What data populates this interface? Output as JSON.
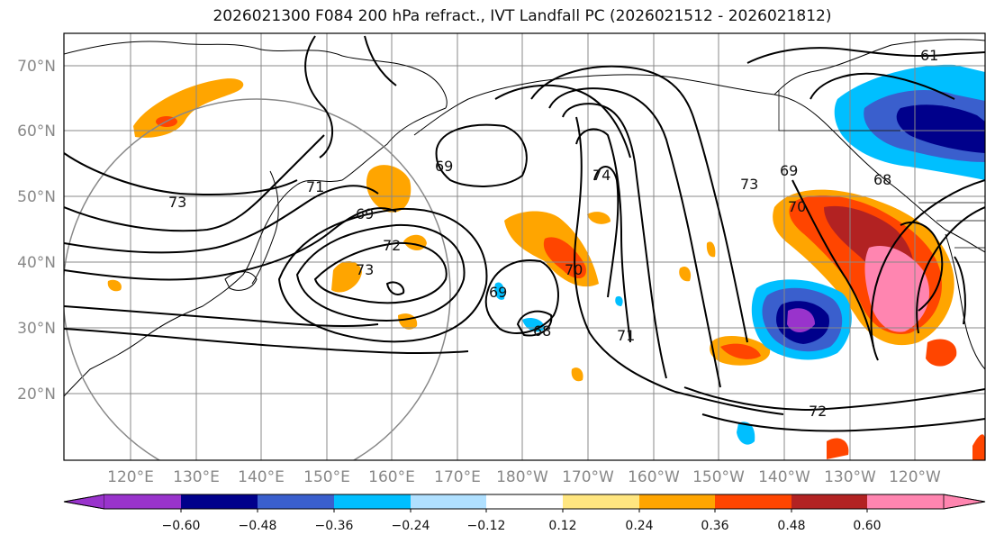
{
  "title": "2026021300 F084 200 hPa refract., IVT Landfall PC (2026021512 - 2026021812)",
  "axes": {
    "latitude_labels": [
      "70°N",
      "60°N",
      "50°N",
      "40°N",
      "30°N",
      "20°N"
    ],
    "longitude_labels": [
      "120°E",
      "130°E",
      "140°E",
      "150°E",
      "160°E",
      "170°E",
      "180°W",
      "170°W",
      "160°W",
      "150°W",
      "140°W",
      "130°W",
      "120°W"
    ]
  },
  "contour_labels": [
    "69",
    "71",
    "73",
    "72",
    "69",
    "70",
    "73",
    "69",
    "68",
    "71",
    "72",
    "70",
    "73",
    "69",
    "68",
    "74",
    "61"
  ],
  "colorbar": {
    "tick_labels": [
      "−0.60",
      "−0.48",
      "−0.36",
      "−0.24",
      "−0.12",
      "0.12",
      "0.24",
      "0.36",
      "0.48",
      "0.60"
    ],
    "colors": [
      "#9933cc",
      "#00008b",
      "#3a5fcd",
      "#00bfff",
      "#b0e0ff",
      "#ffffff",
      "#ffe680",
      "#ffa500",
      "#ff4500",
      "#b22222",
      "#ff85b0",
      "#ff85b0"
    ]
  }
}
